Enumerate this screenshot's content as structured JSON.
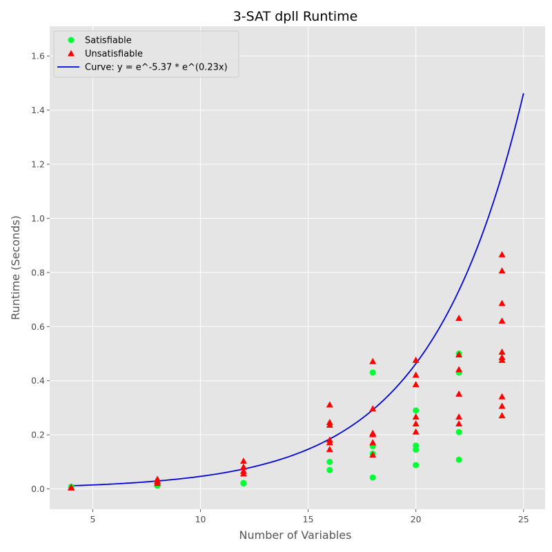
{
  "chart_data": {
    "type": "scatter",
    "title": "3-SAT dpll Runtime",
    "xlabel": "Number of Variables",
    "ylabel": "Runtime (Seconds)",
    "xlim": [
      3,
      26
    ],
    "ylim": [
      -0.075,
      1.71
    ],
    "xticks": [
      5,
      10,
      15,
      20,
      25
    ],
    "yticks": [
      0.0,
      0.2,
      0.4,
      0.6,
      0.8,
      1.0,
      1.2,
      1.4,
      1.6
    ],
    "grid": true,
    "legend_position": "top-left",
    "colors": {
      "satisfiable": "#00ff33",
      "unsatisfiable": "#ff0000",
      "curve": "#0000dd",
      "background": "#e5e5e5",
      "grid": "#ffffff"
    },
    "series": [
      {
        "name": "Satisfiable",
        "marker": "circle",
        "points": [
          [
            4,
            0.008
          ],
          [
            8,
            0.012
          ],
          [
            8,
            0.015
          ],
          [
            12,
            0.02
          ],
          [
            12,
            0.022
          ],
          [
            16,
            0.07
          ],
          [
            16,
            0.1
          ],
          [
            18,
            0.042
          ],
          [
            18,
            0.13
          ],
          [
            18,
            0.158
          ],
          [
            18,
            0.43
          ],
          [
            20,
            0.088
          ],
          [
            20,
            0.145
          ],
          [
            20,
            0.16
          ],
          [
            20,
            0.29
          ],
          [
            22,
            0.108
          ],
          [
            22,
            0.21
          ],
          [
            22,
            0.43
          ],
          [
            22,
            0.5
          ]
        ]
      },
      {
        "name": "Unsatisfiable",
        "marker": "triangle",
        "points": [
          [
            4,
            0.003
          ],
          [
            4,
            0.005
          ],
          [
            8,
            0.02
          ],
          [
            8,
            0.028
          ],
          [
            8,
            0.035
          ],
          [
            12,
            0.055
          ],
          [
            12,
            0.065
          ],
          [
            12,
            0.08
          ],
          [
            12,
            0.102
          ],
          [
            16,
            0.145
          ],
          [
            16,
            0.17
          ],
          [
            16,
            0.18
          ],
          [
            16,
            0.235
          ],
          [
            16,
            0.245
          ],
          [
            16,
            0.31
          ],
          [
            18,
            0.125
          ],
          [
            18,
            0.17
          ],
          [
            18,
            0.2
          ],
          [
            18,
            0.205
          ],
          [
            18,
            0.295
          ],
          [
            18,
            0.47
          ],
          [
            20,
            0.21
          ],
          [
            20,
            0.24
          ],
          [
            20,
            0.265
          ],
          [
            20,
            0.385
          ],
          [
            20,
            0.42
          ],
          [
            20,
            0.475
          ],
          [
            22,
            0.24
          ],
          [
            22,
            0.265
          ],
          [
            22,
            0.35
          ],
          [
            22,
            0.44
          ],
          [
            22,
            0.495
          ],
          [
            22,
            0.63
          ],
          [
            24,
            0.27
          ],
          [
            24,
            0.305
          ],
          [
            24,
            0.34
          ],
          [
            24,
            0.475
          ],
          [
            24,
            0.485
          ],
          [
            24,
            0.505
          ],
          [
            24,
            0.62
          ],
          [
            24,
            0.685
          ],
          [
            24,
            0.805
          ],
          [
            24,
            0.865
          ]
        ]
      },
      {
        "name": "Curve: y = e^-5.37 * e^(0.23x)",
        "marker": "line",
        "function": {
          "a": -5.37,
          "b": 0.23,
          "x_range": [
            4,
            25
          ]
        }
      }
    ]
  }
}
